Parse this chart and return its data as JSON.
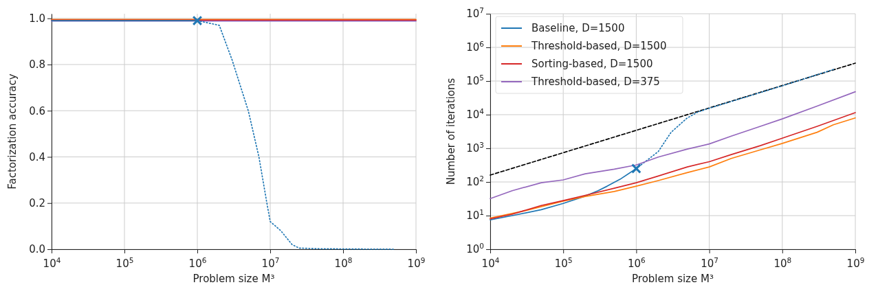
{
  "chart_data": [
    {
      "type": "line",
      "xlabel": "Problem size M³",
      "ylabel": "Factorization accuracy",
      "log": "x",
      "grid": true,
      "legend": false,
      "line_style": "solid",
      "xlim": [
        10000,
        1000000000
      ],
      "xticks": [
        {
          "value": 10000,
          "label": "10$^{4}$"
        },
        {
          "value": 100000,
          "label": "10$^{5}$"
        },
        {
          "value": 1000000,
          "label": "10$^{6}$"
        },
        {
          "value": 10000000,
          "label": "10$^{7}$"
        },
        {
          "value": 100000000,
          "label": "10$^{8}$"
        },
        {
          "value": 1000000000,
          "label": "10$^{9}$"
        }
      ],
      "ylim": [
        0,
        1.02
      ],
      "yticks": [
        {
          "value": 0,
          "label": "0.0"
        },
        {
          "value": 0.2,
          "label": "0.2"
        },
        {
          "value": 0.4,
          "label": "0.4"
        },
        {
          "value": 0.6,
          "label": "0.6"
        },
        {
          "value": 0.8,
          "label": "0.8"
        },
        {
          "value": 1,
          "label": "1.0"
        }
      ],
      "series": [
        {
          "color": "#ff7f0e",
          "x": [
            10000,
            1000000000
          ],
          "values": [
            0.995,
            0.995
          ]
        },
        {
          "color": "#d62728",
          "x": [
            10000,
            1000000000
          ],
          "values": [
            0.992,
            0.992
          ]
        },
        {
          "color": "#9467bd",
          "x": [
            10000,
            1000000000
          ],
          "values": [
            0.988,
            0.988
          ]
        },
        {
          "color": "#1f77b4",
          "x": [
            10000,
            100000,
            1000000
          ],
          "values": [
            0.99,
            0.99,
            0.99
          ]
        },
        {
          "color": "#1f77b4",
          "line_style": "dotted",
          "x": [
            1000000,
            2000000,
            3000000,
            5000000,
            7000000,
            9000000,
            10000000,
            14000000,
            20000000,
            25000000,
            50000000,
            500000000
          ],
          "values": [
            0.99,
            0.97,
            0.82,
            0.6,
            0.4,
            0.2,
            0.12,
            0.08,
            0.02,
            0.005,
            0.002,
            0
          ]
        },
        {
          "type": "scatter",
          "marker": "cross",
          "color": "#1f77b4",
          "x": [
            1000000
          ],
          "values": [
            0.99
          ]
        }
      ]
    },
    {
      "type": "line",
      "xlabel": "Problem size M³",
      "ylabel": "Number of iterations",
      "log": "xy",
      "grid": true,
      "legend": "top left",
      "line_style": "solid",
      "xlim": [
        10000,
        1000000000
      ],
      "xticks": [
        {
          "value": 10000,
          "label": "10$^{4}$"
        },
        {
          "value": 100000,
          "label": "10$^{5}$"
        },
        {
          "value": 1000000,
          "label": "10$^{6}$"
        },
        {
          "value": 10000000,
          "label": "10$^{7}$"
        },
        {
          "value": 100000000,
          "label": "10$^{8}$"
        },
        {
          "value": 1000000000,
          "label": "10$^{9}$"
        }
      ],
      "ylim": [
        1,
        10000000
      ],
      "yticks": [
        {
          "value": 1,
          "label": "10$^{0}$"
        },
        {
          "value": 10,
          "label": "10$^{1}$"
        },
        {
          "value": 100,
          "label": "10$^{2}$"
        },
        {
          "value": 1000,
          "label": "10$^{3}$"
        },
        {
          "value": 10000,
          "label": "10$^{4}$"
        },
        {
          "value": 100000,
          "label": "10$^{5}$"
        },
        {
          "value": 1000000,
          "label": "10$^{6}$"
        },
        {
          "value": 10000000,
          "label": "10$^{7}$"
        }
      ],
      "series": [
        {
          "color": "#000000",
          "line_style": "dashed",
          "x": [
            10000,
            1000000000
          ],
          "values": [
            160,
            340000
          ]
        },
        {
          "name": "Baseline, D=1500",
          "color": "#1f77b4",
          "x": [
            10000,
            20000,
            50000,
            100000,
            200000,
            300000,
            400000,
            600000,
            1000000
          ],
          "values": [
            7.5,
            10,
            15,
            23,
            38,
            55,
            75,
            120,
            250
          ]
        },
        {
          "color": "#1f77b4",
          "line_style": "dotted",
          "x": [
            1000000,
            2000000,
            3000000,
            5000000,
            7000000,
            10000000,
            100000000,
            500000000
          ],
          "values": [
            250,
            800,
            3000,
            8000,
            12000,
            15500,
            72000,
            220000
          ]
        },
        {
          "name": "Threshold-based, D=1500",
          "color": "#ff7f0e",
          "x": [
            10000,
            30000,
            100000,
            200000,
            500000,
            1000000,
            2000000,
            5000000,
            10000000,
            20000000,
            50000000,
            100000000,
            300000000,
            500000000,
            1000000000
          ],
          "values": [
            8.5,
            14,
            27,
            37,
            52,
            75,
            110,
            190,
            280,
            500,
            900,
            1400,
            3000,
            5000,
            8000
          ]
        },
        {
          "name": "Sorting-based, D=1500",
          "color": "#d62728",
          "x": [
            10000,
            20000,
            50000,
            100000,
            200000,
            500000,
            1000000,
            2000000,
            5000000,
            10000000,
            20000000,
            50000000,
            100000000,
            300000000,
            1000000000
          ],
          "values": [
            8,
            11,
            20,
            28,
            40,
            65,
            95,
            150,
            280,
            400,
            650,
            1200,
            2000,
            4500,
            11500
          ]
        },
        {
          "name": "Threshold-based, D=375",
          "color": "#9467bd",
          "x": [
            10000,
            20000,
            50000,
            100000,
            200000,
            500000,
            1000000,
            2000000,
            5000000,
            10000000,
            20000000,
            50000000,
            100000000,
            300000000,
            1000000000
          ],
          "values": [
            32,
            55,
            95,
            115,
            175,
            240,
            320,
            550,
            950,
            1350,
            2300,
            4500,
            7500,
            18000,
            48000
          ]
        },
        {
          "type": "scatter",
          "marker": "cross",
          "color": "#1f77b4",
          "x": [
            1000000
          ],
          "values": [
            250
          ]
        }
      ]
    }
  ]
}
